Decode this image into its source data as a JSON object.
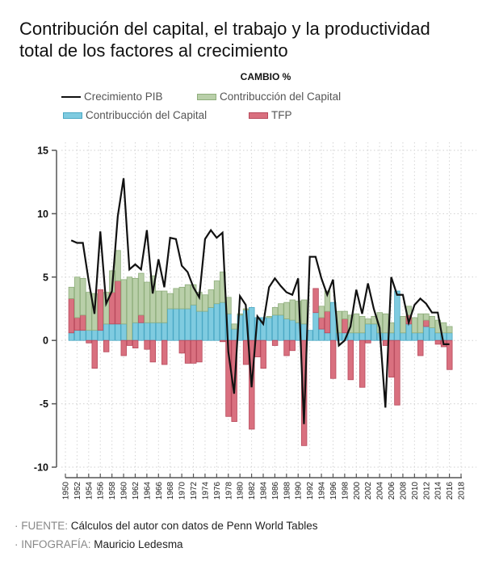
{
  "header": {
    "title_line1": "Contribución del capital, el trabajo y la productividad",
    "title_line2": "total de los factores al crecimiento",
    "subtitle": "CAMBIO %"
  },
  "legend": [
    {
      "label": "Crecimiento PIB",
      "kind": "line",
      "color": "#111111"
    },
    {
      "label": "Contribucción del Capital",
      "kind": "bar",
      "color": "#b9cfa9",
      "border": "#8fae7c"
    },
    {
      "label": "Contribucción del Capital",
      "kind": "bar",
      "color": "#7fcbe0",
      "border": "#4aa8c4"
    },
    {
      "label": "TFP",
      "kind": "bar",
      "color": "#d9707f",
      "border": "#b84a5c"
    }
  ],
  "footer": {
    "source_label": "· FUENTE:",
    "source_text": "Cálculos del autor con datos de Penn World Tables",
    "credit_label": "· INFOGRAFÍA:",
    "credit_text": "Mauricio Ledesma"
  },
  "chart_data": {
    "type": "bar",
    "title": "Contribución del capital, el trabajo y la productividad total de los factores al crecimiento",
    "ylabel": "CAMBIO %",
    "xlabel": "",
    "ylim": [
      -10,
      15
    ],
    "yticks": [
      15,
      10,
      5,
      0,
      -5,
      -10
    ],
    "xlim": [
      1950,
      2018
    ],
    "xticks": [
      1950,
      1952,
      1954,
      1956,
      1958,
      1960,
      1962,
      1964,
      1966,
      1968,
      1970,
      1972,
      1974,
      1976,
      1978,
      1980,
      1982,
      1984,
      1986,
      1988,
      1990,
      1992,
      1994,
      1996,
      1998,
      2000,
      2002,
      2004,
      2006,
      2008,
      2010,
      2012,
      2014,
      2016,
      2018
    ],
    "grid": true,
    "legend_position": "top",
    "colors": {
      "capital": "#b9cfa9",
      "capital_border": "#8fae7c",
      "labor": "#7fcbe0",
      "labor_border": "#4aa8c4",
      "tfp": "#d9707f",
      "tfp_border": "#b84a5c",
      "gdp": "#111111"
    },
    "years": [
      1951,
      1952,
      1953,
      1954,
      1955,
      1956,
      1957,
      1958,
      1959,
      1960,
      1961,
      1962,
      1963,
      1964,
      1965,
      1966,
      1967,
      1968,
      1969,
      1970,
      1971,
      1972,
      1973,
      1974,
      1975,
      1976,
      1977,
      1978,
      1979,
      1980,
      1981,
      1982,
      1983,
      1984,
      1985,
      1986,
      1987,
      1988,
      1989,
      1990,
      1991,
      1992,
      1993,
      1994,
      1995,
      1996,
      1997,
      1998,
      1999,
      2000,
      2001,
      2002,
      2003,
      2004,
      2005,
      2006,
      2007,
      2008,
      2009,
      2010,
      2011,
      2012,
      2013,
      2014,
      2015,
      2016
    ],
    "series": [
      {
        "name": "Contribucción del Capital (azul)",
        "key": "labor",
        "values": [
          0.6,
          0.8,
          0.8,
          0.8,
          0.8,
          0.8,
          1.3,
          1.3,
          1.3,
          1.3,
          0.0,
          1.4,
          1.4,
          1.4,
          1.4,
          1.4,
          1.4,
          2.5,
          2.5,
          2.5,
          2.5,
          2.8,
          2.3,
          2.3,
          2.6,
          2.9,
          3.0,
          2.1,
          0.9,
          2.0,
          2.4,
          2.6,
          1.8,
          1.8,
          1.8,
          2.0,
          2.0,
          1.7,
          1.6,
          1.4,
          1.3,
          0.8,
          2.2,
          0.9,
          0.6,
          3.0,
          0.6,
          0.6,
          0.6,
          0.6,
          0.6,
          1.3,
          1.3,
          0.6,
          0.6,
          0.6,
          3.9,
          0.6,
          1.3,
          0.6,
          0.6,
          1.1,
          1.0,
          0.6,
          0.6,
          0.6
        ]
      },
      {
        "name": "TFP",
        "key": "tfp",
        "values": [
          2.7,
          1.0,
          1.2,
          -0.2,
          -2.2,
          3.2,
          -0.9,
          2.5,
          3.4,
          -1.2,
          -0.4,
          -0.6,
          0.6,
          -0.7,
          -1.7,
          0.0,
          -1.9,
          0.0,
          0.0,
          -1.0,
          -1.8,
          -1.8,
          -1.7,
          0.0,
          0.0,
          0.0,
          -0.1,
          -6.0,
          -6.4,
          0.0,
          -1.9,
          -7.0,
          -1.3,
          -2.2,
          0.0,
          -0.4,
          0.0,
          -1.2,
          -0.8,
          0.0,
          -8.3,
          0.0,
          1.9,
          0.9,
          1.7,
          -3.0,
          0.0,
          1.1,
          -3.1,
          0.0,
          -3.7,
          -0.2,
          0.0,
          0.0,
          -0.4,
          -2.9,
          -5.1,
          0.0,
          0.7,
          0.0,
          -1.2,
          0.5,
          0.0,
          -0.3,
          -0.5,
          -2.3
        ]
      },
      {
        "name": "Contribucción del Capital (verde)",
        "key": "capital",
        "values": [
          0.9,
          3.2,
          2.9,
          3.0,
          2.9,
          0.0,
          2.5,
          1.7,
          2.4,
          3.5,
          5.0,
          3.5,
          3.3,
          3.2,
          3.7,
          2.5,
          2.5,
          1.2,
          1.6,
          1.7,
          1.9,
          1.6,
          1.5,
          1.3,
          1.4,
          1.8,
          2.4,
          1.3,
          0.4,
          0.1,
          0.1,
          0.0,
          0.0,
          0.0,
          0.1,
          0.6,
          0.9,
          1.3,
          1.6,
          1.7,
          1.9,
          0.0,
          0.0,
          0.9,
          1.6,
          0.0,
          1.7,
          0.6,
          1.4,
          1.5,
          1.3,
          0.4,
          0.6,
          1.6,
          1.5,
          0.8,
          0.0,
          1.3,
          0.7,
          1.2,
          1.5,
          0.5,
          0.9,
          1.0,
          0.8,
          0.5
        ]
      },
      {
        "name": "Crecimiento PIB",
        "key": "gdp",
        "type": "line",
        "values": [
          7.9,
          7.7,
          7.7,
          4.7,
          2.1,
          8.6,
          2.9,
          3.9,
          9.8,
          12.8,
          5.6,
          6.0,
          5.6,
          8.7,
          3.7,
          6.4,
          4.2,
          8.1,
          8.0,
          5.9,
          5.4,
          4.2,
          3.4,
          8.0,
          8.7,
          8.1,
          8.5,
          -0.9,
          -4.2,
          3.5,
          2.8,
          -3.7,
          1.9,
          1.3,
          4.2,
          4.9,
          4.3,
          3.8,
          3.6,
          4.9,
          -6.6,
          6.6,
          6.6,
          4.9,
          3.6,
          4.8,
          -0.4,
          0.0,
          1.1,
          4.0,
          2.1,
          4.5,
          2.5,
          1.0,
          -5.3,
          5.0,
          3.6,
          3.6,
          1.4,
          2.8,
          3.3,
          2.9,
          2.2,
          2.2,
          -0.3,
          -0.3
        ]
      }
    ]
  }
}
